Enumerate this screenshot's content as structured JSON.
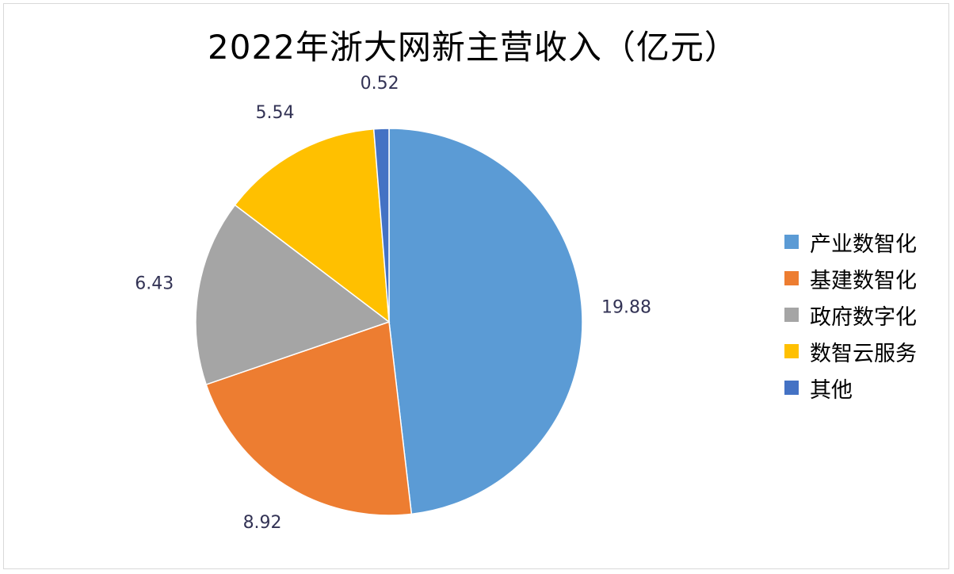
{
  "chart_data": {
    "type": "pie",
    "title": "2022年浙大网新主营收入（亿元）",
    "slices": [
      {
        "label": "产业数智化",
        "value": 19.88,
        "value_label": "19.88",
        "color": "#5b9bd5"
      },
      {
        "label": "基建数智化",
        "value": 8.92,
        "value_label": "8.92",
        "color": "#ed7d31"
      },
      {
        "label": "政府数字化",
        "value": 6.43,
        "value_label": "6.43",
        "color": "#a5a5a5"
      },
      {
        "label": "数智云服务",
        "value": 5.54,
        "value_label": "5.54",
        "color": "#ffc000"
      },
      {
        "label": "其他",
        "value": 0.52,
        "value_label": "0.52",
        "color": "#4472c4"
      }
    ],
    "legend_position": "right",
    "start_angle": "12 o'clock",
    "direction": "clockwise"
  }
}
